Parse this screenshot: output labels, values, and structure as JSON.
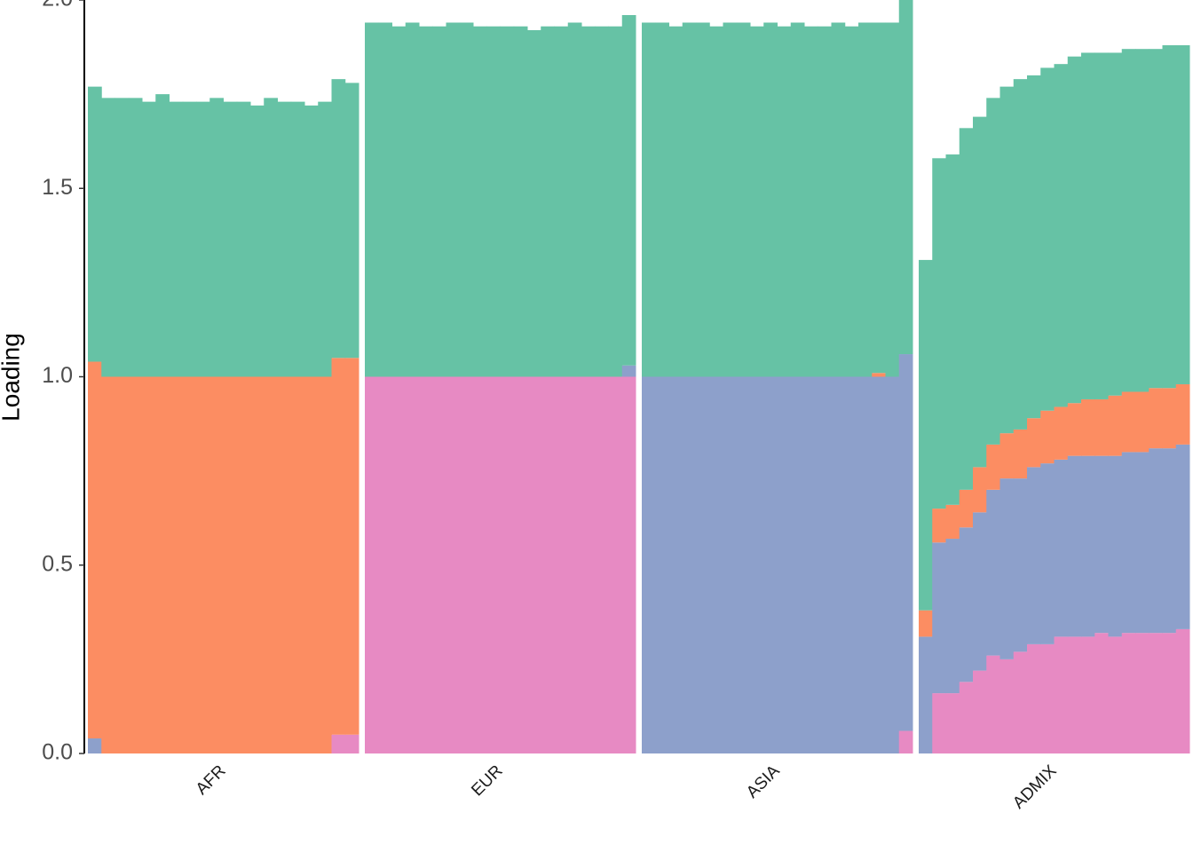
{
  "chart_data": {
    "type": "bar",
    "stacked": true,
    "ylabel": "Loading",
    "ylim": [
      0,
      2.0
    ],
    "yticks": [
      {
        "value": 0,
        "label": "0.0"
      },
      0.5,
      {
        "value": 1,
        "label": "1.0"
      },
      1.5,
      {
        "value": 2,
        "label": "2.0"
      }
    ],
    "panels": [
      {
        "label": "AFR",
        "series": [
          {
            "color": "#e78ac3",
            "values": [
              0,
              0,
              0,
              0,
              0,
              0,
              0,
              0,
              0,
              0,
              0,
              0,
              0,
              0,
              0,
              0,
              0,
              0,
              0.05,
              0.05
            ]
          },
          {
            "color": "#8da0cb",
            "values": [
              0.04,
              0,
              0,
              0,
              0,
              0,
              0,
              0,
              0,
              0,
              0,
              0,
              0,
              0,
              0,
              0,
              0,
              0,
              0,
              0
            ]
          },
          {
            "color": "#fc8d62",
            "values": [
              1.0,
              1.0,
              1.0,
              1.0,
              1.0,
              1.0,
              1.0,
              1.0,
              1.0,
              1.0,
              1.0,
              1.0,
              1.0,
              1.0,
              1.0,
              1.0,
              1.0,
              1.0,
              1.0,
              1.0
            ]
          },
          {
            "color": "#66c2a5",
            "values": [
              0.73,
              0.74,
              0.74,
              0.74,
              0.73,
              0.75,
              0.73,
              0.73,
              0.73,
              0.74,
              0.73,
              0.73,
              0.72,
              0.74,
              0.73,
              0.73,
              0.72,
              0.73,
              0.74,
              0.73
            ]
          }
        ]
      },
      {
        "label": "EUR",
        "series": [
          {
            "color": "#e78ac3",
            "values": [
              1.0,
              1.0,
              1.0,
              1.0,
              1.0,
              1.0,
              1.0,
              1.0,
              1.0,
              1.0,
              1.0,
              1.0,
              1.0,
              1.0,
              1.0,
              1.0,
              1.0,
              1.0,
              1.0,
              1.0
            ]
          },
          {
            "color": "#8da0cb",
            "values": [
              0,
              0,
              0,
              0,
              0,
              0,
              0,
              0,
              0,
              0,
              0,
              0,
              0,
              0,
              0,
              0,
              0,
              0,
              0,
              0.03
            ]
          },
          {
            "color": "#fc8d62",
            "values": [
              0,
              0,
              0,
              0,
              0,
              0,
              0,
              0,
              0,
              0,
              0,
              0,
              0,
              0,
              0,
              0,
              0,
              0,
              0,
              0
            ]
          },
          {
            "color": "#66c2a5",
            "values": [
              0.94,
              0.94,
              0.93,
              0.94,
              0.93,
              0.93,
              0.94,
              0.94,
              0.93,
              0.93,
              0.93,
              0.93,
              0.92,
              0.93,
              0.93,
              0.94,
              0.93,
              0.93,
              0.93,
              0.93
            ]
          }
        ]
      },
      {
        "label": "ASIA",
        "series": [
          {
            "color": "#e78ac3",
            "values": [
              0,
              0,
              0,
              0,
              0,
              0,
              0,
              0,
              0,
              0,
              0,
              0,
              0,
              0,
              0,
              0,
              0,
              0,
              0,
              0.06
            ]
          },
          {
            "color": "#8da0cb",
            "values": [
              1.0,
              1.0,
              1.0,
              1.0,
              1.0,
              1.0,
              1.0,
              1.0,
              1.0,
              1.0,
              1.0,
              1.0,
              1.0,
              1.0,
              1.0,
              1.0,
              1.0,
              1.0,
              1.0,
              1.0
            ]
          },
          {
            "color": "#fc8d62",
            "values": [
              0,
              0,
              0,
              0,
              0,
              0,
              0,
              0,
              0,
              0,
              0,
              0,
              0,
              0,
              0,
              0,
              0,
              0.01,
              0,
              0
            ]
          },
          {
            "color": "#66c2a5",
            "values": [
              0.94,
              0.94,
              0.93,
              0.94,
              0.94,
              0.93,
              0.94,
              0.94,
              0.93,
              0.94,
              0.93,
              0.94,
              0.93,
              0.93,
              0.94,
              0.93,
              0.94,
              0.93,
              0.94,
              0.94
            ]
          }
        ]
      },
      {
        "label": "ADMIX",
        "series": [
          {
            "color": "#e78ac3",
            "values": [
              0,
              0.16,
              0.16,
              0.19,
              0.22,
              0.26,
              0.25,
              0.27,
              0.29,
              0.29,
              0.31,
              0.31,
              0.31,
              0.32,
              0.31,
              0.32,
              0.32,
              0.32,
              0.32,
              0.33
            ]
          },
          {
            "color": "#8da0cb",
            "values": [
              0.31,
              0.4,
              0.41,
              0.41,
              0.42,
              0.44,
              0.48,
              0.46,
              0.47,
              0.48,
              0.47,
              0.48,
              0.48,
              0.47,
              0.48,
              0.48,
              0.48,
              0.49,
              0.49,
              0.49
            ]
          },
          {
            "color": "#fc8d62",
            "values": [
              0.07,
              0.09,
              0.09,
              0.1,
              0.12,
              0.12,
              0.12,
              0.13,
              0.13,
              0.14,
              0.14,
              0.14,
              0.15,
              0.15,
              0.16,
              0.16,
              0.16,
              0.16,
              0.16,
              0.16
            ]
          },
          {
            "color": "#66c2a5",
            "values": [
              0.93,
              0.93,
              0.93,
              0.96,
              0.93,
              0.92,
              0.92,
              0.93,
              0.91,
              0.91,
              0.91,
              0.92,
              0.92,
              0.92,
              0.91,
              0.91,
              0.91,
              0.9,
              0.91,
              0.9
            ]
          }
        ]
      }
    ]
  }
}
